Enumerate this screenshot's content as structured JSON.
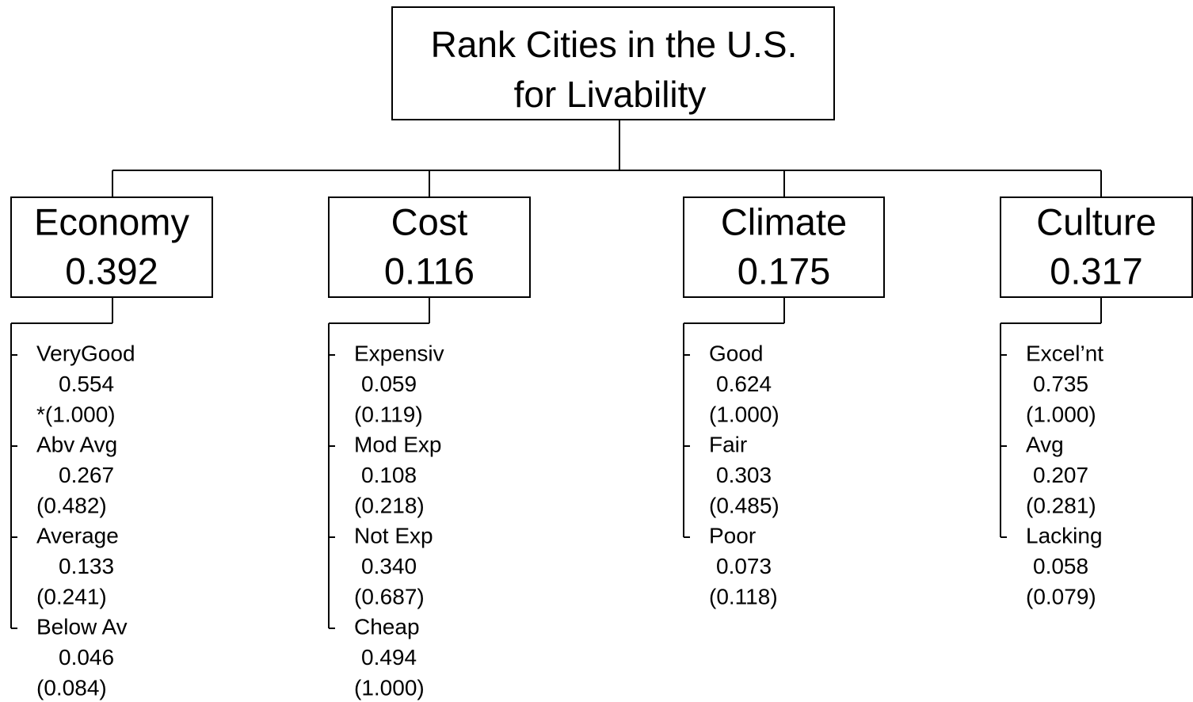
{
  "title": {
    "lines": [
      "Rank Cities in the U.S.",
      "for Livability"
    ]
  },
  "criteria": [
    {
      "name": "Economy",
      "weight": "0.392",
      "ratings": [
        {
          "name": "VeryGood",
          "weight": "0.554",
          "ideal": "*(1.000)"
        },
        {
          "name": "Abv Avg",
          "weight": "0.267",
          "ideal": "(0.482)"
        },
        {
          "name": "Average",
          "weight": "0.133",
          "ideal": "(0.241)"
        },
        {
          "name": "Below Av",
          "weight": "0.046",
          "ideal": "(0.084)"
        }
      ]
    },
    {
      "name": "Cost",
      "weight": "0.116",
      "ratings": [
        {
          "name": "Expensiv",
          "weight": "0.059",
          "ideal": "(0.119)"
        },
        {
          "name": "Mod Exp",
          "weight": "0.108",
          "ideal": "(0.218)"
        },
        {
          "name": "Not Exp",
          "weight": "0.340",
          "ideal": "(0.687)"
        },
        {
          "name": "Cheap",
          "weight": "0.494",
          "ideal": "(1.000)"
        }
      ]
    },
    {
      "name": "Climate",
      "weight": "0.175",
      "ratings": [
        {
          "name": "Good",
          "weight": "0.624",
          "ideal": "(1.000)"
        },
        {
          "name": "Fair",
          "weight": "0.303",
          "ideal": "(0.485)"
        },
        {
          "name": "Poor",
          "weight": "0.073",
          "ideal": "(0.118)"
        }
      ]
    },
    {
      "name": "Culture",
      "weight": "0.317",
      "ratings": [
        {
          "name": "Excel’nt",
          "weight": "0.735",
          "ideal": "(1.000)"
        },
        {
          "name": "Avg",
          "weight": "0.207",
          "ideal": "(0.281)"
        },
        {
          "name": "Lacking",
          "weight": "0.058",
          "ideal": "(0.079)"
        }
      ]
    }
  ]
}
